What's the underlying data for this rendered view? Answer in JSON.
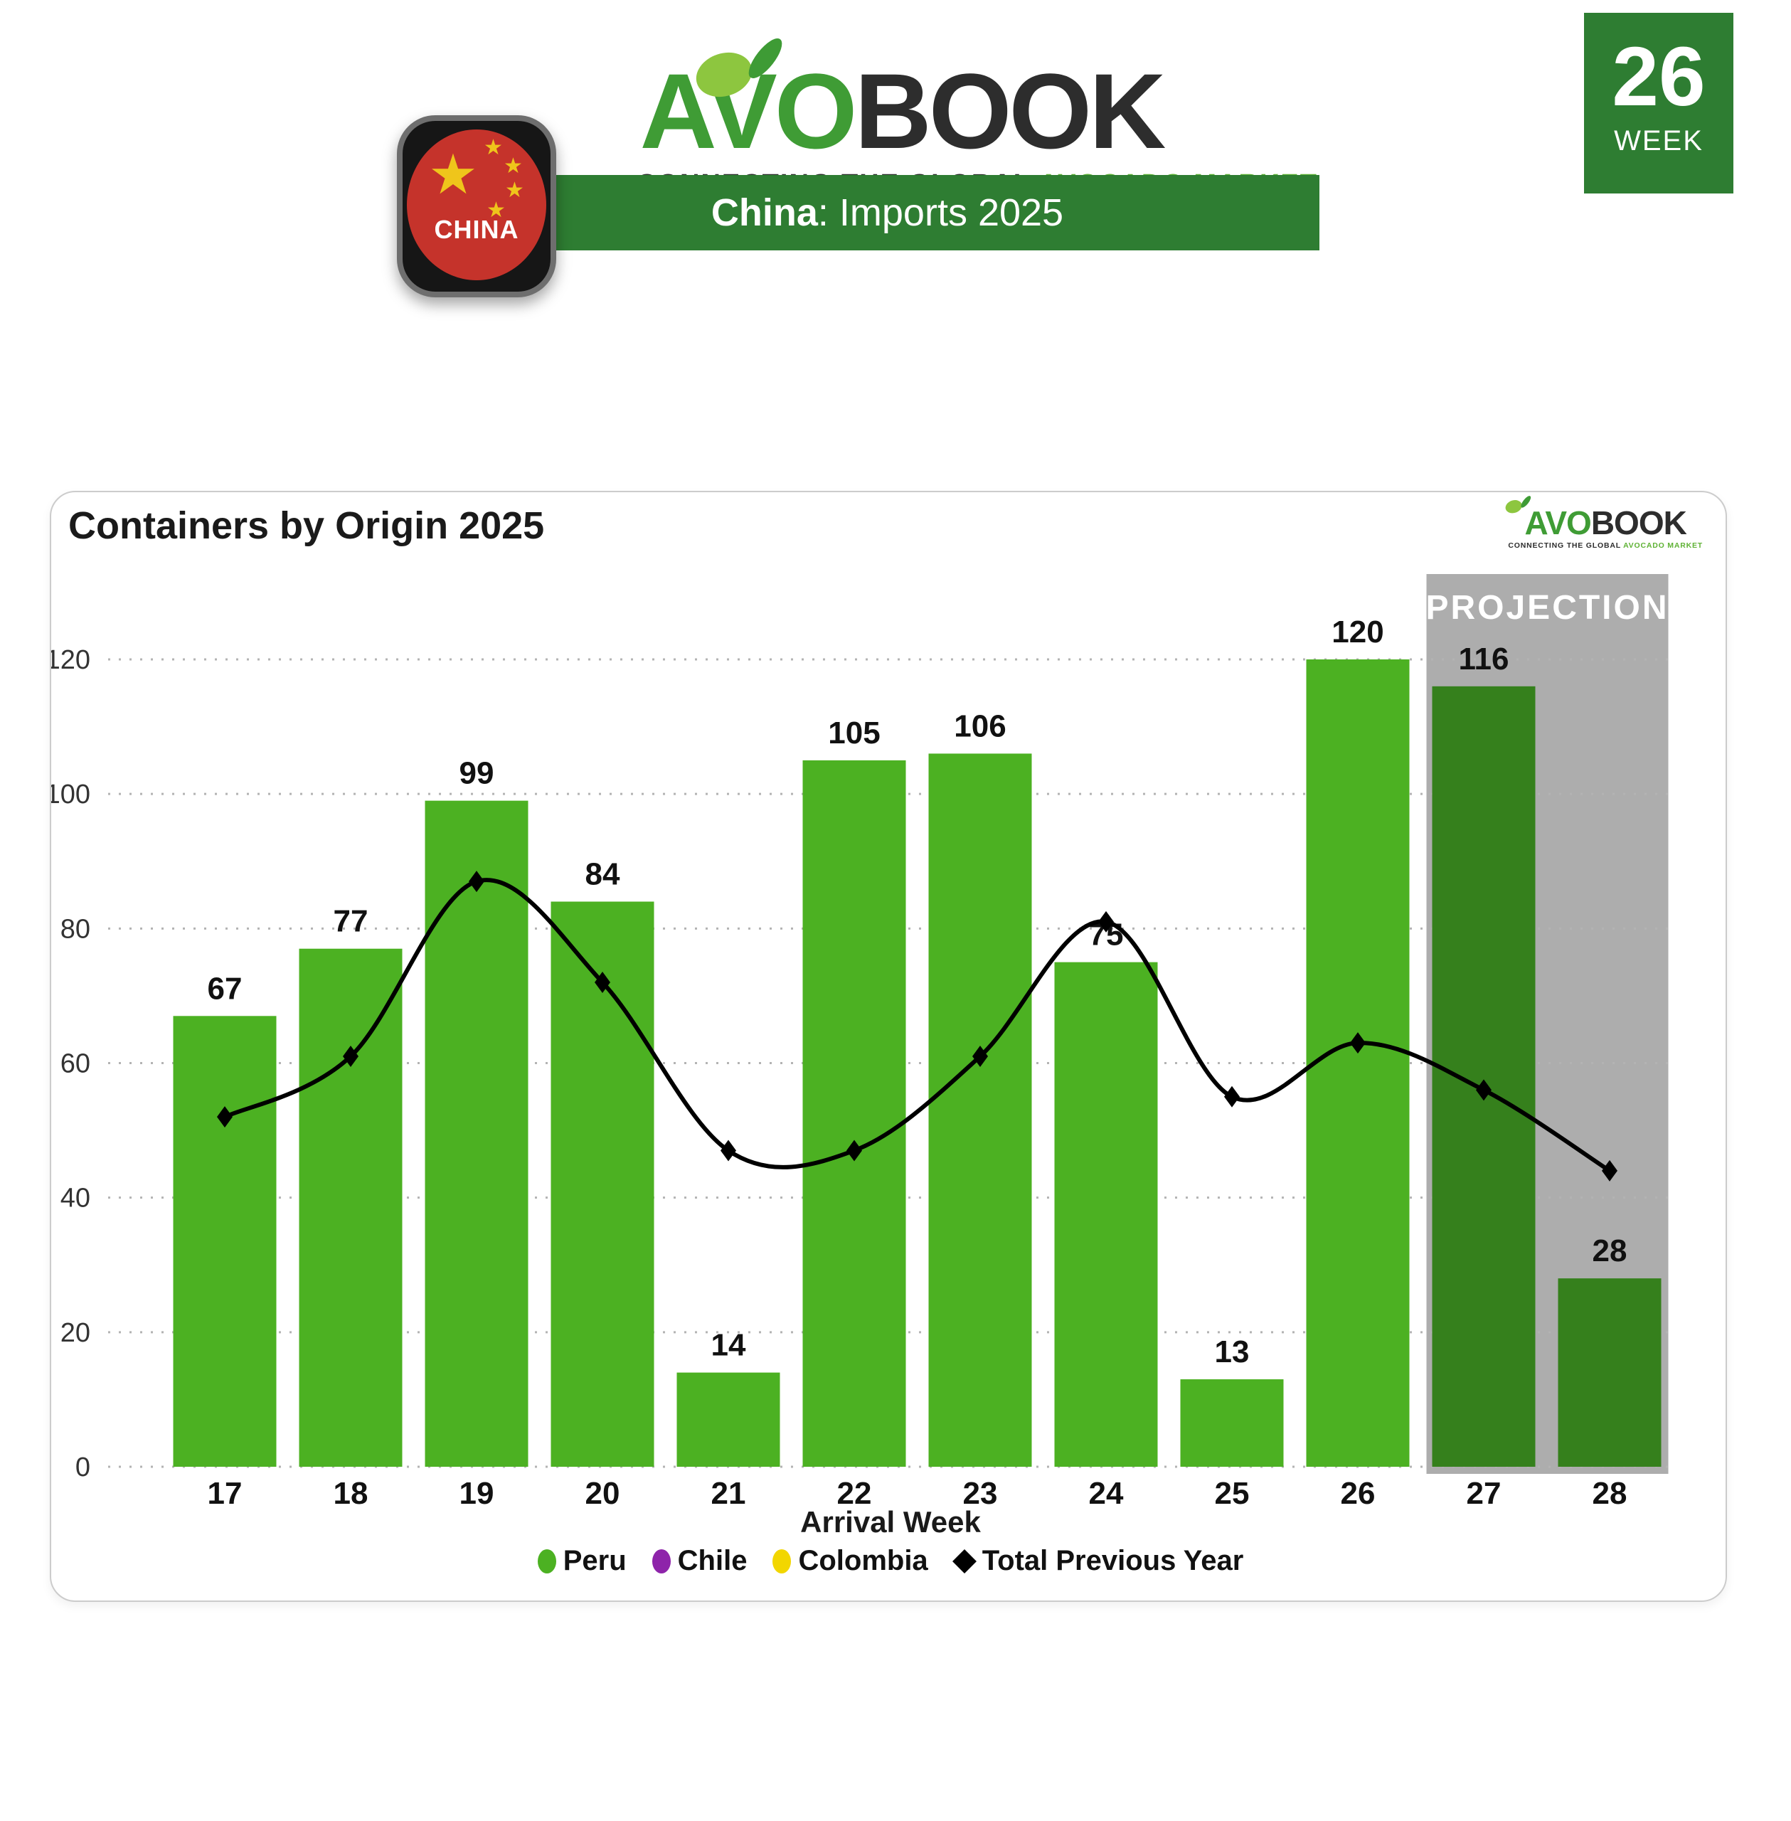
{
  "header": {
    "logo": {
      "part1": "AVO",
      "part2": "BOOK",
      "tagline_dark": "CONNECTING THE GLOBAL ",
      "tagline_green": "AVOCADO MARKET",
      "green": "#3F9C35",
      "dark": "#2D2D2D",
      "leaf_light": "#8DC63F",
      "leaf_dark": "#3E9B35"
    },
    "flag_badge": {
      "label": "CHINA",
      "flag_red": "#C5332B",
      "star_yellow": "#EFC51B"
    },
    "banner": {
      "country": "China",
      "rest": ": Imports 2025",
      "color": "#2E7D32"
    },
    "week_badge": {
      "number": "26",
      "label": "WEEK",
      "color": "#2E7D32"
    }
  },
  "chart_data": {
    "type": "bar+line",
    "title": "Containers by Origin 2025",
    "xlabel": "Arrival Week",
    "categories": [
      "17",
      "18",
      "19",
      "20",
      "21",
      "22",
      "23",
      "24",
      "25",
      "26",
      "27",
      "28"
    ],
    "bar_series": {
      "name": "Peru",
      "values": [
        67,
        77,
        99,
        84,
        14,
        105,
        106,
        75,
        13,
        120,
        116,
        28
      ],
      "color": "#4CB122",
      "projection_color": "#35801C"
    },
    "line_series": {
      "name": "Total Previous Year",
      "values": [
        52,
        61,
        87,
        72,
        47,
        47,
        61,
        81,
        55,
        63,
        56,
        44
      ],
      "color": "#000000",
      "marker": "diamond"
    },
    "projection": {
      "label": "PROJECTION",
      "weeks": [
        "27",
        "28"
      ],
      "band_color": "#ADADAD",
      "text_color": "#FFFFFF"
    },
    "ylim": [
      0,
      120
    ],
    "yticks": [
      0,
      20,
      40,
      60,
      80,
      100,
      120
    ],
    "grid": "dotted-horizontal",
    "legend": {
      "position": "bottom",
      "items": [
        {
          "label": "Peru",
          "color": "#4CB122",
          "shape": "circle"
        },
        {
          "label": "Chile",
          "color": "#8E24AA",
          "shape": "circle"
        },
        {
          "label": "Colombia",
          "color": "#F2D600",
          "shape": "circle"
        },
        {
          "label": "Total Previous Year",
          "color": "#000000",
          "shape": "diamond"
        }
      ]
    }
  }
}
